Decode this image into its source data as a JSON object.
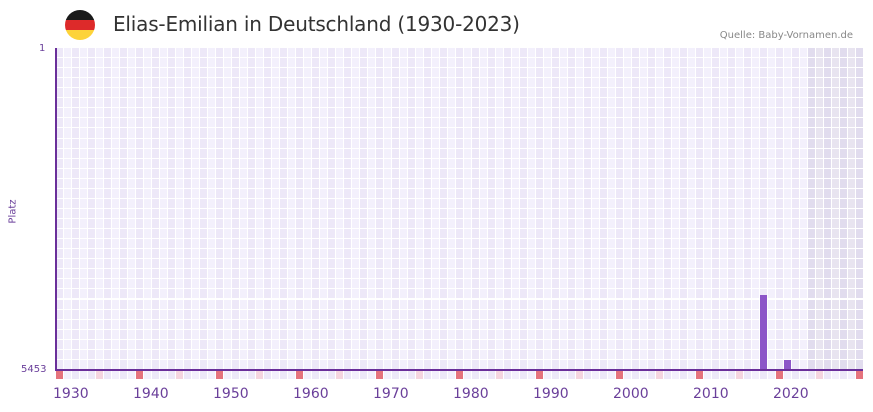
{
  "header": {
    "title": "Elias-Emilian in Deutschland (1930-2023)",
    "source": "Quelle: Baby-Vornamen.de",
    "flag": {
      "icon": "germany-flag-icon",
      "colors": [
        "#1a1a1a",
        "#dd2a2a",
        "#fdd33a"
      ]
    }
  },
  "colors": {
    "bar": "#8c55c8",
    "axis": "#6a2f9a",
    "grid_a": "#ede8f8",
    "grid_b": "#f3f0fc",
    "future_a": "#e1dcee",
    "future_b": "#e8e4f0",
    "decade_marker": "#e5737d",
    "halfdecade_marker": "#f5d5df"
  },
  "chart_data": {
    "type": "bar",
    "title": "Elias-Emilian in Deutschland (1930-2023)",
    "xlabel": "",
    "ylabel": "Platz",
    "ylim": [
      5453,
      1
    ],
    "y_inverted": true,
    "y_ticks": [
      "1",
      "5453"
    ],
    "x_ticks": [
      "1930",
      "1940",
      "1950",
      "1960",
      "1970",
      "1980",
      "1990",
      "2000",
      "2010",
      "2020"
    ],
    "x_range": [
      1930,
      2030
    ],
    "shaded_region": [
      2024,
      2030
    ],
    "grid": true,
    "legend": null,
    "x": [
      2018,
      2021
    ],
    "values": [
      4183,
      5284
    ]
  }
}
